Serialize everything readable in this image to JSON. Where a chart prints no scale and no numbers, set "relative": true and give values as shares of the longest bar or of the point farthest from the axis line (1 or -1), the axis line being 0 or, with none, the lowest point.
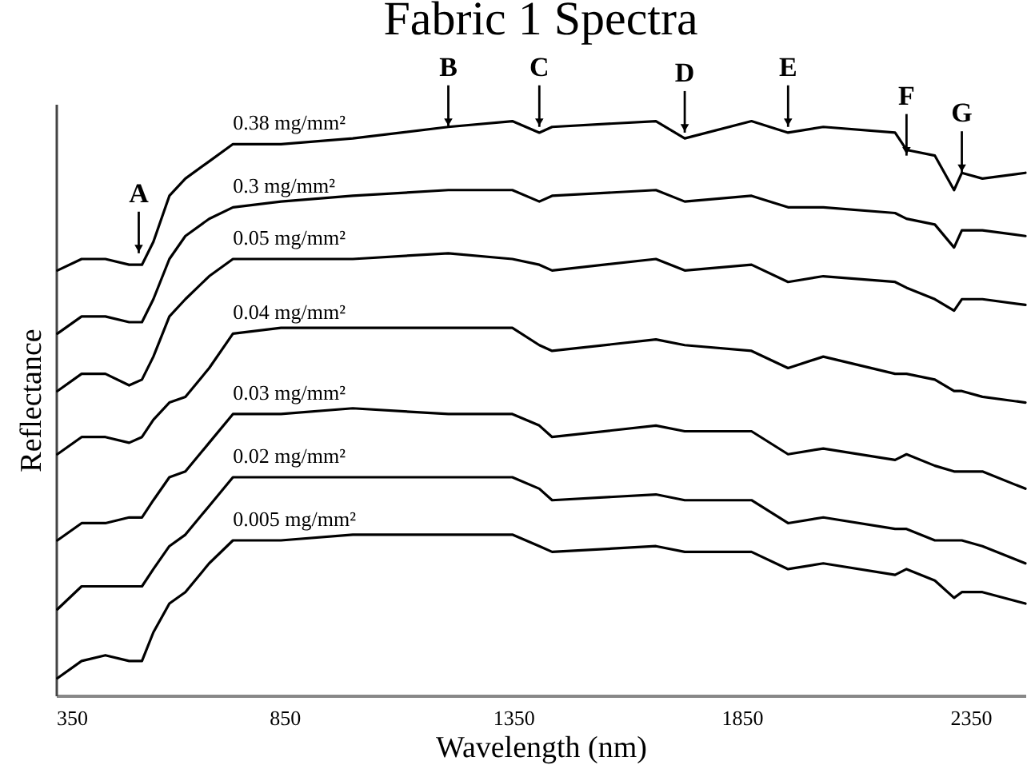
{
  "chart_data": {
    "type": "line",
    "title": "Fabric 1 Spectra",
    "xlabel": "Wavelength (nm)",
    "ylabel": "Reflectance",
    "relative": true,
    "legend": false,
    "grid": false,
    "line_style": "solid",
    "x": [
      353,
      406,
      458,
      510,
      538,
      563,
      598,
      633,
      685,
      737,
      842,
      999,
      1208,
      1348,
      1407,
      1435,
      1662,
      1725,
      1871,
      1951,
      2028,
      2185,
      2210,
      2272,
      2314,
      2331,
      2376,
      2470
    ],
    "xlim": [
      350,
      2470
    ],
    "xticks": [
      350,
      850,
      {
        "value": 1350,
        "label": "1350"
      },
      {
        "value": 1850,
        "label": "1850"
      },
      {
        "value": 2350,
        "label": "2350"
      }
    ],
    "series": [
      {
        "name": "0.38 mg/mm²",
        "color": "#000000",
        "values": [
          0.74,
          0.76,
          0.76,
          0.75,
          0.75,
          0.79,
          0.87,
          0.9,
          0.93,
          0.96,
          0.96,
          0.97,
          0.99,
          1.0,
          0.98,
          0.99,
          1.0,
          0.97,
          1.0,
          0.98,
          0.99,
          0.98,
          0.95,
          0.94,
          0.88,
          0.91,
          0.9,
          0.91
        ]
      },
      {
        "name": "0.3 mg/mm²",
        "color": "#000000",
        "values": [
          0.63,
          0.66,
          0.66,
          0.65,
          0.65,
          0.69,
          0.76,
          0.8,
          0.83,
          0.85,
          0.86,
          0.87,
          0.88,
          0.88,
          0.86,
          0.87,
          0.88,
          0.86,
          0.87,
          0.85,
          0.85,
          0.84,
          0.83,
          0.82,
          0.78,
          0.81,
          0.81,
          0.8
        ]
      },
      {
        "name": "0.05 mg/mm²",
        "color": "#000000",
        "values": [
          0.53,
          0.56,
          0.56,
          0.54,
          0.55,
          0.59,
          0.66,
          0.69,
          0.73,
          0.76,
          0.76,
          0.76,
          0.77,
          0.76,
          0.75,
          0.74,
          0.76,
          0.74,
          0.75,
          0.72,
          0.73,
          0.72,
          0.71,
          0.69,
          0.67,
          0.69,
          0.69,
          0.68
        ]
      },
      {
        "name": "0.04 mg/mm²",
        "color": "#000000",
        "values": [
          0.42,
          0.45,
          0.45,
          0.44,
          0.45,
          0.48,
          0.51,
          0.52,
          0.57,
          0.63,
          0.64,
          0.64,
          0.64,
          0.64,
          0.61,
          0.6,
          0.62,
          0.61,
          0.6,
          0.57,
          0.59,
          0.56,
          0.56,
          0.55,
          0.53,
          0.53,
          0.52,
          0.51
        ]
      },
      {
        "name": "0.03 mg/mm²",
        "color": "#000000",
        "values": [
          0.27,
          0.3,
          0.3,
          0.31,
          0.31,
          0.34,
          0.38,
          0.39,
          0.44,
          0.49,
          0.49,
          0.5,
          0.49,
          0.49,
          0.47,
          0.45,
          0.47,
          0.46,
          0.46,
          0.42,
          0.43,
          0.41,
          0.42,
          0.4,
          0.39,
          0.39,
          0.39,
          0.36
        ]
      },
      {
        "name": "0.02 mg/mm²",
        "color": "#000000",
        "values": [
          0.15,
          0.19,
          0.19,
          0.19,
          0.19,
          0.22,
          0.26,
          0.28,
          0.33,
          0.38,
          0.38,
          0.38,
          0.38,
          0.38,
          0.36,
          0.34,
          0.35,
          0.34,
          0.34,
          0.3,
          0.31,
          0.29,
          0.29,
          0.27,
          0.27,
          0.27,
          0.26,
          0.23
        ]
      },
      {
        "name": "0.005 mg/mm²",
        "color": "#000000",
        "values": [
          0.03,
          0.06,
          0.07,
          0.06,
          0.06,
          0.11,
          0.16,
          0.18,
          0.23,
          0.27,
          0.27,
          0.28,
          0.28,
          0.28,
          0.26,
          0.25,
          0.26,
          0.25,
          0.25,
          0.22,
          0.23,
          0.21,
          0.22,
          0.2,
          0.17,
          0.18,
          0.18,
          0.16
        ]
      }
    ],
    "annotations": [
      {
        "text": "A",
        "x": 531,
        "y": 0.77
      },
      {
        "text": "B",
        "x": 1208,
        "y": 0.99
      },
      {
        "text": "C",
        "x": 1407,
        "y": 0.99
      },
      {
        "text": "D",
        "x": 1725,
        "y": 0.98
      },
      {
        "text": "E",
        "x": 1951,
        "y": 0.99
      },
      {
        "text": "F",
        "x": 2210,
        "y": 0.94
      },
      {
        "text": "G",
        "x": 2331,
        "y": 0.91
      }
    ]
  }
}
